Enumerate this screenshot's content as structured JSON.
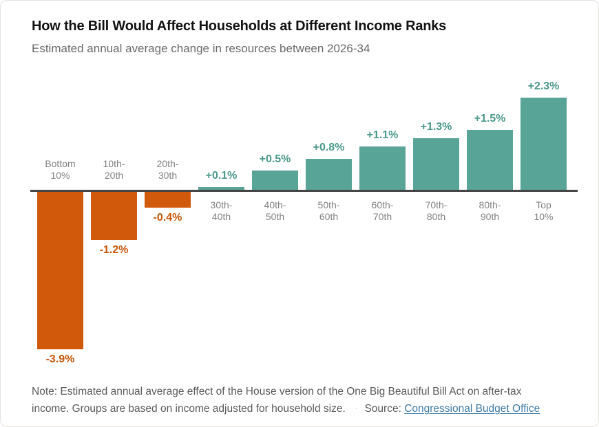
{
  "header": {
    "title": "How the Bill Would Affect Households at Different Income Ranks",
    "subtitle": "Estimated annual average change in resources between 2026-34"
  },
  "chart_data": {
    "type": "bar",
    "title": "How the Bill Would Affect Households at Different Income Ranks",
    "subtitle": "Estimated annual average change in resources between 2026-34",
    "xlabel": "",
    "ylabel": "",
    "unit": "percent",
    "ylim": [
      -4.2,
      2.6
    ],
    "grid": false,
    "legend": "none",
    "categories": [
      [
        "Bottom",
        "10%"
      ],
      [
        "10th-",
        "20th"
      ],
      [
        "20th-",
        "30th"
      ],
      [
        "30th-",
        "40th"
      ],
      [
        "40th-",
        "50th"
      ],
      [
        "50th-",
        "60th"
      ],
      [
        "60th-",
        "70th"
      ],
      [
        "70th-",
        "80th"
      ],
      [
        "80th-",
        "90th"
      ],
      [
        "Top",
        "10%"
      ]
    ],
    "values": [
      -3.9,
      -1.2,
      -0.4,
      0.1,
      0.5,
      0.8,
      1.1,
      1.3,
      1.5,
      2.3
    ],
    "value_labels": [
      "-3.9%",
      "-1.2%",
      "-0.4%",
      "+0.1%",
      "+0.5%",
      "+0.8%",
      "+1.1%",
      "+1.3%",
      "+1.5%",
      "+2.3%"
    ],
    "colors": {
      "positive_bar": "#58a497",
      "negative_bar": "#d0590b",
      "positive_value_label": "#4a998a",
      "negative_value_label": "#c75708",
      "category_label": "#818181",
      "axis_line": "#454545"
    }
  },
  "note": {
    "line1": "Note: Estimated annual average effect of the House version of the One Big Beautiful Bill Act on after-tax",
    "line2": "income. Groups are based on income adjusted for household size.",
    "separator": "·",
    "source_label": "Source:",
    "source_link": "Congressional Budget Office"
  }
}
